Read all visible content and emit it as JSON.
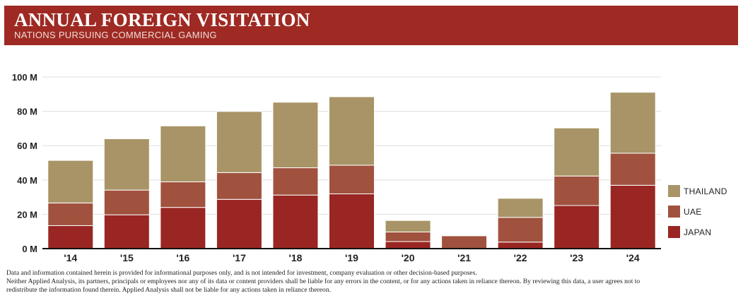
{
  "header": {
    "title": "ANNUAL FOREIGN VISITATION",
    "subtitle": "NATIONS PURSUING COMMERCIAL GAMING"
  },
  "colors": {
    "banner": "#9e2a23",
    "thailand": "#a89466",
    "uae": "#a0523e",
    "japan": "#992622",
    "grid": "#dddddd",
    "axis": "#111111"
  },
  "chart_data": {
    "type": "bar",
    "stacked": true,
    "title": "ANNUAL FOREIGN VISITATION",
    "subtitle": "NATIONS PURSUING COMMERCIAL GAMING",
    "xlabel": "",
    "ylabel": "",
    "categories": [
      "'14",
      "'15",
      "'16",
      "'17",
      "'18",
      "'19",
      "'20",
      "'21",
      "'22",
      "'23",
      "'24"
    ],
    "series": [
      {
        "name": "JAPAN",
        "values": [
          13.4,
          19.7,
          24.0,
          28.7,
          31.2,
          31.9,
          4.1,
          0.2,
          3.8,
          25.1,
          36.9
        ]
      },
      {
        "name": "UAE",
        "values": [
          13.2,
          14.4,
          14.9,
          15.6,
          15.9,
          16.7,
          5.6,
          7.3,
          14.4,
          17.2,
          18.7
        ]
      },
      {
        "name": "THAILAND",
        "values": [
          24.8,
          29.9,
          32.6,
          35.6,
          38.2,
          39.9,
          6.7,
          0.4,
          11.1,
          28.0,
          35.5
        ]
      }
    ],
    "ylim": [
      0,
      100
    ],
    "yticks": [
      0,
      20,
      40,
      60,
      80,
      100
    ],
    "ytick_labels": [
      "0 M",
      "20 M",
      "40 M",
      "60 M",
      "80 M",
      "100 M"
    ],
    "grid": true,
    "legend": {
      "position": "bottom-right",
      "entries": [
        "THAILAND",
        "UAE",
        "JAPAN"
      ]
    }
  },
  "footnote": {
    "line1": "Data and information contained herein is provided for informational purposes only, and is not intended for investment, company evaluation or other decision-based purposes.",
    "line2": "Neither Applied Analysis, its partners, principals or employees nor any of its data or content providers shall be liable for any errors in the content, or for any actions taken in reliance thereon. By reviewing this data, a user agrees not to",
    "line3": "redistribute the information found therein. Applied Analysis shall not be liable for any actions taken in reliance thereon."
  }
}
